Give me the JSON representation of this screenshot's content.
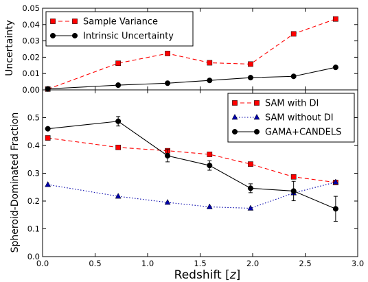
{
  "chart_data": [
    {
      "type": "line",
      "ylabel": "Uncertainty",
      "xlim": [
        0.0,
        3.0
      ],
      "ylim": [
        0.0,
        0.05
      ],
      "yticks": [
        "0.00",
        "0.01",
        "0.02",
        "0.03",
        "0.04",
        "0.05"
      ],
      "legend_position": "top-left",
      "grid": false,
      "series": [
        {
          "name": "Sample Variance",
          "color": "#ff0000",
          "marker": "square",
          "linestyle": "dashed",
          "x": [
            0.05,
            0.72,
            1.19,
            1.59,
            1.98,
            2.39,
            2.79
          ],
          "y": [
            0.0005,
            0.0163,
            0.0223,
            0.0166,
            0.0158,
            0.0343,
            0.0434
          ]
        },
        {
          "name": "Intrinsic Uncertainty",
          "color": "#000000",
          "marker": "circle",
          "linestyle": "solid",
          "x": [
            0.05,
            0.72,
            1.19,
            1.59,
            1.98,
            2.39,
            2.79
          ],
          "y": [
            0.0006,
            0.0029,
            0.0041,
            0.0058,
            0.0075,
            0.0083,
            0.0138
          ]
        }
      ]
    },
    {
      "type": "line",
      "xlabel": "Redshift [z]",
      "xlabel_prefix": "Redshift ",
      "xlabel_var": "z",
      "ylabel": "Spheroid-Dominated Fraction",
      "xlim": [
        0.0,
        3.0
      ],
      "ylim": [
        0.0,
        0.6
      ],
      "xticks": [
        "0.0",
        "0.5",
        "1.0",
        "1.5",
        "2.0",
        "2.5",
        "3.0"
      ],
      "yticks": [
        "0.0",
        "0.1",
        "0.2",
        "0.3",
        "0.4",
        "0.5"
      ],
      "legend_position": "top-right",
      "grid": false,
      "series": [
        {
          "name": "SAM with DI",
          "color": "#ff0000",
          "marker": "square",
          "linestyle": "dashed",
          "x": [
            0.05,
            0.72,
            1.19,
            1.59,
            1.98,
            2.39,
            2.79
          ],
          "y": [
            0.427,
            0.393,
            0.381,
            0.368,
            0.333,
            0.287,
            0.267
          ]
        },
        {
          "name": "SAM without DI",
          "color": "#0000aa",
          "marker": "triangle",
          "linestyle": "dotted",
          "x": [
            0.05,
            0.72,
            1.19,
            1.59,
            1.98,
            2.39,
            2.79
          ],
          "y": [
            0.259,
            0.217,
            0.195,
            0.179,
            0.174,
            0.229,
            0.268
          ]
        },
        {
          "name": "GAMA+CANDELS",
          "color": "#000000",
          "marker": "circle",
          "linestyle": "solid",
          "x": [
            0.05,
            0.72,
            1.19,
            1.59,
            1.98,
            2.39,
            2.79
          ],
          "y": [
            0.46,
            0.487,
            0.363,
            0.328,
            0.246,
            0.236,
            0.172
          ],
          "yerr": [
            0.0,
            0.017,
            0.022,
            0.017,
            0.016,
            0.035,
            0.045
          ]
        }
      ]
    }
  ]
}
